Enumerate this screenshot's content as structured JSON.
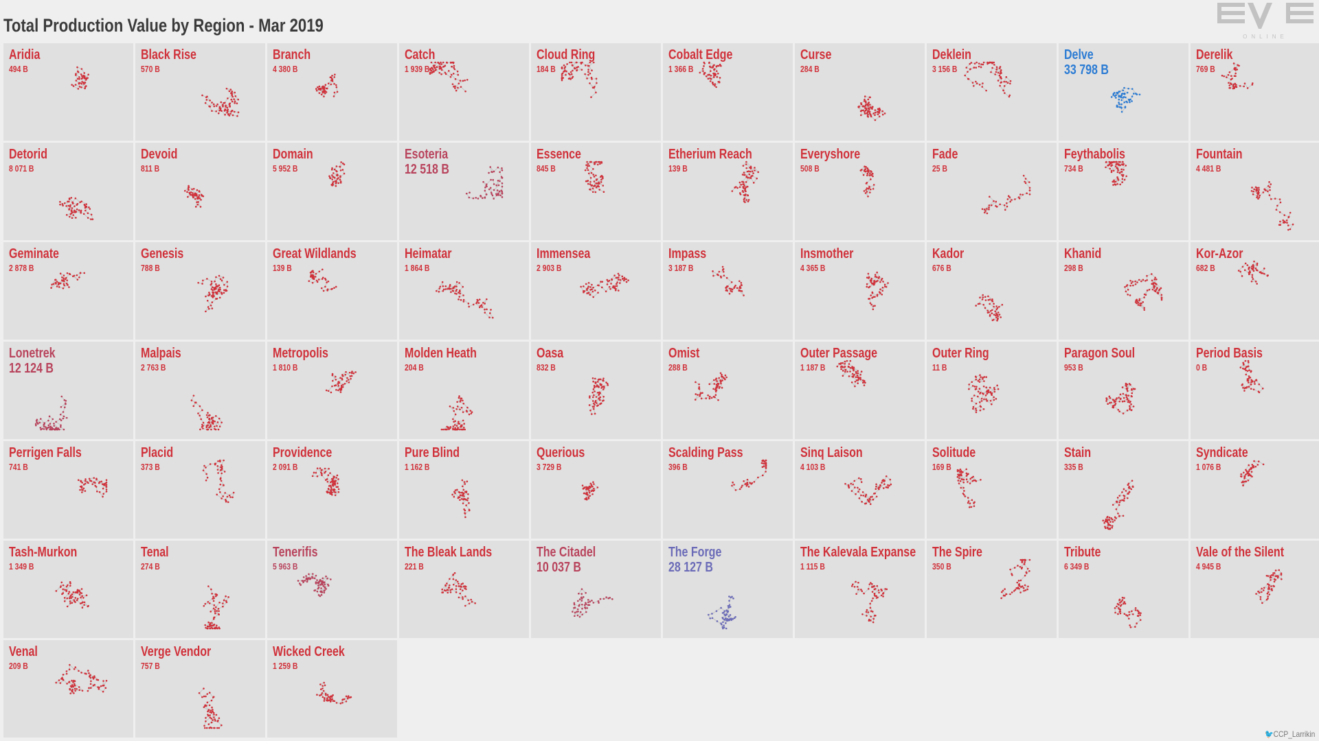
{
  "title": "Total Production Value by Region - Mar 2019",
  "logo": {
    "text": "EVE",
    "subtext": "ONLINE"
  },
  "credit": {
    "icon": "twitter-bird-icon",
    "handle": "CCP_Larrikin"
  },
  "colors": {
    "default": "#d0313a",
    "muted": "#b8435c",
    "highlight_delve": "#2a7bd4",
    "highlight_forge": "#6b6bb8",
    "panel": "#e0e0e0",
    "link": "#c8c8c8"
  },
  "chart_data": {
    "type": "small-multiples map",
    "title": "Total Production Value by Region - Mar 2019",
    "unit": "B",
    "regions": [
      {
        "name": "Aridia",
        "value": "494 B"
      },
      {
        "name": "Black Rise",
        "value": "570 B"
      },
      {
        "name": "Branch",
        "value": "4 380 B"
      },
      {
        "name": "Catch",
        "value": "1 939 B"
      },
      {
        "name": "Cloud Ring",
        "value": "184 B"
      },
      {
        "name": "Cobalt Edge",
        "value": "1 366 B"
      },
      {
        "name": "Curse",
        "value": "284 B"
      },
      {
        "name": "Deklein",
        "value": "3 156 B"
      },
      {
        "name": "Delve",
        "value": "33 798 B",
        "color": "highlight_delve"
      },
      {
        "name": "Derelik",
        "value": "769 B"
      },
      {
        "name": "Detorid",
        "value": "8 071 B"
      },
      {
        "name": "Devoid",
        "value": "811 B"
      },
      {
        "name": "Domain",
        "value": "5 952 B"
      },
      {
        "name": "Esoteria",
        "value": "12 518 B",
        "color": "muted"
      },
      {
        "name": "Essence",
        "value": "845 B"
      },
      {
        "name": "Etherium Reach",
        "value": "139 B"
      },
      {
        "name": "Everyshore",
        "value": "508 B"
      },
      {
        "name": "Fade",
        "value": "25 B"
      },
      {
        "name": "Feythabolis",
        "value": "734 B"
      },
      {
        "name": "Fountain",
        "value": "4 481 B"
      },
      {
        "name": "Geminate",
        "value": "2 878 B"
      },
      {
        "name": "Genesis",
        "value": "788 B"
      },
      {
        "name": "Great Wildlands",
        "value": "139 B"
      },
      {
        "name": "Heimatar",
        "value": "1 864 B"
      },
      {
        "name": "Immensea",
        "value": "2 903 B"
      },
      {
        "name": "Impass",
        "value": "3 187 B"
      },
      {
        "name": "Insmother",
        "value": "4 365 B"
      },
      {
        "name": "Kador",
        "value": "676 B"
      },
      {
        "name": "Khanid",
        "value": "298 B"
      },
      {
        "name": "Kor-Azor",
        "value": "682 B"
      },
      {
        "name": "Lonetrek",
        "value": "12 124 B",
        "color": "muted"
      },
      {
        "name": "Malpais",
        "value": "2 763 B"
      },
      {
        "name": "Metropolis",
        "value": "1 810 B"
      },
      {
        "name": "Molden Heath",
        "value": "204 B"
      },
      {
        "name": "Oasa",
        "value": "832 B"
      },
      {
        "name": "Omist",
        "value": "288 B"
      },
      {
        "name": "Outer Passage",
        "value": "1 187 B"
      },
      {
        "name": "Outer Ring",
        "value": "11 B"
      },
      {
        "name": "Paragon Soul",
        "value": "953 B"
      },
      {
        "name": "Period Basis",
        "value": "0 B"
      },
      {
        "name": "Perrigen Falls",
        "value": "741 B"
      },
      {
        "name": "Placid",
        "value": "373 B"
      },
      {
        "name": "Providence",
        "value": "2 091 B"
      },
      {
        "name": "Pure Blind",
        "value": "1 162 B"
      },
      {
        "name": "Querious",
        "value": "3 729 B"
      },
      {
        "name": "Scalding Pass",
        "value": "396 B"
      },
      {
        "name": "Sinq Laison",
        "value": "4 103 B"
      },
      {
        "name": "Solitude",
        "value": "169 B"
      },
      {
        "name": "Stain",
        "value": "335 B"
      },
      {
        "name": "Syndicate",
        "value": "1 076 B"
      },
      {
        "name": "Tash-Murkon",
        "value": "1 349 B"
      },
      {
        "name": "Tenal",
        "value": "274 B"
      },
      {
        "name": "Tenerifis",
        "value": "5 963 B",
        "color": "muted"
      },
      {
        "name": "The Bleak Lands",
        "value": "221 B"
      },
      {
        "name": "The Citadel",
        "value": "10 037 B",
        "color": "muted"
      },
      {
        "name": "The Forge",
        "value": "28 127 B",
        "color": "highlight_forge"
      },
      {
        "name": "The Kalevala Expanse",
        "value": "1 115 B"
      },
      {
        "name": "The Spire",
        "value": "350 B"
      },
      {
        "name": "Tribute",
        "value": "6 349 B"
      },
      {
        "name": "Vale of the Silent",
        "value": "4 945 B"
      },
      {
        "name": "Venal",
        "value": "209 B"
      },
      {
        "name": "Verge Vendor",
        "value": "757 B"
      },
      {
        "name": "Wicked Creek",
        "value": "1 259 B"
      }
    ]
  }
}
